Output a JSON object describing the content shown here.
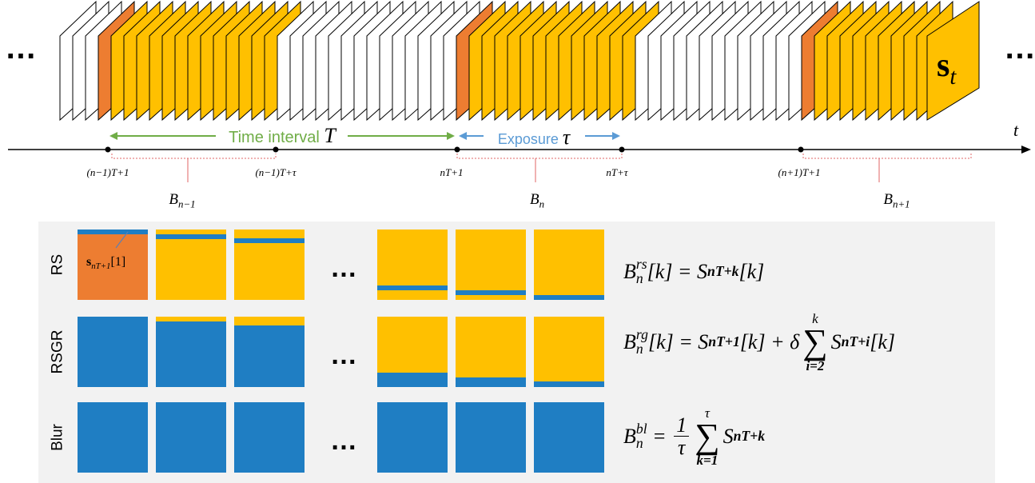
{
  "header": {
    "ellipses": [
      "…",
      "…"
    ],
    "frame_label": [
      "s",
      "t"
    ]
  },
  "timeline": {
    "axis_label": "t",
    "interval": [
      "Time interval",
      "T"
    ],
    "exposure": [
      "Exposure",
      "τ"
    ],
    "ticks": [
      "(n−1)T+1",
      "(n−1)T+τ",
      "nT+1",
      "nT+τ",
      "(n+1)T+1"
    ],
    "blocks": [
      [
        "B",
        "n−1"
      ],
      [
        "B",
        "n"
      ],
      [
        "B",
        "n+1"
      ]
    ]
  },
  "panel": {
    "rows": [
      {
        "label": "RS",
        "ellipsis": "…",
        "cell_label": [
          "s",
          "nT+1",
          "[1]"
        ],
        "equation": [
          "B",
          "n",
          "rs",
          "[k] = S",
          "nT+k",
          "[k]"
        ]
      },
      {
        "label": "RSGR",
        "ellipsis": "…",
        "equation": [
          "B",
          "n",
          "rg",
          "[k] = S",
          "nT+1",
          "[k] + δ",
          "∑",
          "k",
          "i=2",
          "S",
          "nT+i",
          "[k]"
        ]
      },
      {
        "label": "Blur",
        "ellipsis": "…",
        "equation": [
          "B",
          "n",
          "bl",
          " = ",
          "1",
          "τ",
          "∑",
          "τ",
          "k=1",
          "S",
          "nT+k"
        ]
      }
    ]
  }
}
